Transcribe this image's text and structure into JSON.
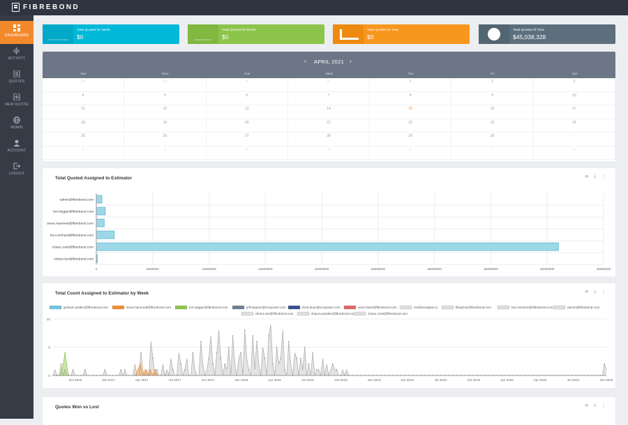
{
  "brand": "FIBREBOND",
  "nav": [
    {
      "label": "DASHBOARD",
      "icon": "dashboard-icon"
    },
    {
      "label": "ACTIVITY",
      "icon": "activity-icon"
    },
    {
      "label": "QUOTES",
      "icon": "quotes-icon"
    },
    {
      "label": "NEW QUOTE",
      "icon": "new-quote-icon"
    },
    {
      "label": "ADMIN",
      "icon": "globe-icon"
    },
    {
      "label": "ACCOUNT",
      "icon": "user-icon"
    },
    {
      "label": "LOGOUT",
      "icon": "logout-icon"
    }
  ],
  "stats": [
    {
      "label": "Total Quoted for Week",
      "value": "$0",
      "color": "#00b8d8",
      "icon": "chart-icon"
    },
    {
      "label": "Total Quoted for Month",
      "value": "$0",
      "color": "#8dc44b",
      "icon": "chart-icon"
    },
    {
      "label": "Total Quoted for Year",
      "value": "$0",
      "color": "#f7971e",
      "icon": "chart-icon"
    },
    {
      "label": "Total Quoted All Time",
      "value": "$45,038,328",
      "color": "#5b6f7c",
      "icon": "pie-icon"
    }
  ],
  "calendar": {
    "month": "APRIL 2021",
    "weekdays": [
      "Sun",
      "Mon",
      "Tue",
      "Wed",
      "Thu",
      "Fri",
      "Sat"
    ],
    "weeks": [
      [
        "28",
        "29",
        "30",
        "31",
        "1",
        "2",
        "3"
      ],
      [
        "4",
        "5",
        "6",
        "7",
        "8",
        "9",
        "10"
      ],
      [
        "11",
        "12",
        "13",
        "14",
        "15",
        "16",
        "17"
      ],
      [
        "18",
        "19",
        "20",
        "21",
        "22",
        "23",
        "24"
      ],
      [
        "25",
        "26",
        "27",
        "28",
        "29",
        "30",
        "1"
      ],
      [
        "2",
        "3",
        "4",
        "5",
        "6",
        "7",
        "8"
      ]
    ],
    "today": "15"
  },
  "panels": {
    "est_title": "Total Quoted Assigned to Estimator",
    "wk_title": "Total Count Assigned to Estimator by Week",
    "wl_title": "Quotes Won vs Lost"
  },
  "chart_data": [
    {
      "type": "bar",
      "orientation": "horizontal",
      "title": "Total Quoted Assigned to Estimator",
      "categories": [
        "admin@fibrebond.com",
        "tom.bigger@fibrebond.com",
        "steve.hammett@fibrebond.com",
        "ben.reinhard@fibrebond.com",
        "chase.cook@fibrebond.com",
        "clinton.lee@fibrebond.com"
      ],
      "values": [
        500000,
        800000,
        700000,
        1600000,
        41000000,
        100000
      ],
      "xlim": [
        0,
        45000000
      ],
      "xticks": [
        "0",
        "5000000",
        "10000000",
        "15000000",
        "20000000",
        "25000000",
        "30000000",
        "35000000",
        "40000000",
        "45000000"
      ],
      "color": "#9ed8e8",
      "grid": true
    },
    {
      "type": "area",
      "title": "Total Count Assigned to Estimator by Week",
      "ylim": [
        0,
        10
      ],
      "yticks": [
        "0",
        "5",
        "10"
      ],
      "xticks": [
        "Oct 2016",
        "Jan 2017",
        "Apr 2017",
        "Jul 2017",
        "Oct 2017",
        "Jan 2018",
        "Apr 2018",
        "Jul 2018",
        "Oct 2018",
        "Jan 2019",
        "Apr 2019",
        "Jul 2019",
        "Oct 2019",
        "Jan 2020",
        "Apr 2020",
        "Jul 2020",
        "Oct 2020"
      ],
      "legend": [
        {
          "name": "graham.walker@fibrebond.com",
          "color": "#6cc6e0"
        },
        {
          "name": "steve.hammett@fibrebond.com",
          "color": "#f28a2b"
        },
        {
          "name": "tom.bigger@fibrebond.com",
          "color": "#8dc44b"
        },
        {
          "name": "jeff.begnen@scopower.com",
          "color": "#6e7c90"
        },
        {
          "name": "brett.dean@scopower.com",
          "color": "#334e8a"
        },
        {
          "name": "sean.black@fibrebond.com",
          "color": "#e06464"
        },
        {
          "name": "nick@unabyte.io",
          "color": "#dddddd"
        },
        {
          "name": "fibadmin@fibrebond.com",
          "color": "#dddddd"
        },
        {
          "name": "ben.reinhard@fibrebond.com",
          "color": "#dddddd"
        },
        {
          "name": "admin@fibrebond.com",
          "color": "#dddddd"
        },
        {
          "name": "clinton.lee@fibrebond.com",
          "color": "#dddddd"
        },
        {
          "name": "sharon.pulstler@fibrebond.com",
          "color": "#dddddd"
        },
        {
          "name": "chase.cook@fibrebond.com",
          "color": "#dddddd"
        }
      ],
      "series": [
        {
          "name": "tom.bigger@fibrebond.com",
          "color": "#8dc44b",
          "values": [
            0,
            0,
            0,
            1,
            2,
            4,
            2,
            0
          ]
        },
        {
          "name": "steve.hammett@fibrebond.com",
          "color": "#f28a2b",
          "values": [
            0,
            1,
            2,
            0,
            1,
            0,
            1,
            0,
            1,
            0
          ]
        },
        {
          "name": "chase.cook@fibrebond.com",
          "color": "#cccccc",
          "values": [
            0,
            1,
            0,
            0,
            2,
            0,
            1,
            0,
            0,
            0,
            1,
            0,
            0,
            0,
            0,
            0,
            1,
            0,
            0,
            0,
            0,
            0,
            0,
            0,
            0,
            0,
            1,
            0,
            0,
            0,
            0,
            0,
            0,
            0,
            1,
            0,
            1,
            0,
            0,
            0,
            0,
            2,
            0,
            0,
            4,
            1,
            0,
            1,
            0,
            6,
            3,
            0,
            1,
            0,
            0,
            2,
            0,
            1,
            0,
            3,
            1,
            0,
            0,
            4,
            2,
            0,
            1,
            3,
            0,
            0,
            4,
            1,
            0,
            0,
            6,
            2,
            0,
            1,
            3,
            7,
            2,
            0,
            4,
            8,
            3,
            0,
            2,
            1,
            5,
            0,
            7,
            2,
            0,
            3,
            4,
            0,
            8,
            3,
            1,
            0,
            7,
            1,
            6,
            2,
            0,
            5,
            3,
            0,
            7,
            9,
            2,
            0,
            5,
            2,
            3,
            8,
            1,
            0,
            6,
            2,
            0,
            4,
            3,
            0,
            3,
            1,
            5,
            0,
            2,
            0,
            4,
            0,
            1,
            1,
            0,
            3,
            0,
            2,
            0,
            1,
            2,
            1,
            1,
            0,
            0,
            1,
            0,
            1,
            0,
            0,
            0,
            0,
            0,
            0,
            0,
            0,
            0,
            0,
            0,
            0,
            0,
            0,
            0,
            0,
            0,
            0,
            0,
            0,
            0,
            0,
            0,
            0,
            0,
            0,
            0,
            0,
            0,
            0,
            0,
            0,
            0,
            0,
            0,
            0,
            0,
            0,
            0,
            0,
            0,
            0,
            0,
            0,
            0,
            0,
            0,
            0,
            0,
            0,
            0,
            0,
            0,
            0,
            0,
            0,
            0,
            0,
            0,
            0,
            0,
            0,
            0,
            0,
            0,
            0,
            0,
            0,
            0,
            0,
            0,
            0,
            0,
            0,
            0,
            0,
            0,
            0,
            0,
            0,
            0,
            0,
            0,
            0,
            0,
            0,
            0,
            0,
            0,
            0,
            0,
            0,
            0,
            0,
            0,
            0,
            0,
            0,
            0,
            0,
            0,
            0,
            0,
            0,
            0,
            0,
            0,
            0,
            0,
            0,
            0,
            0,
            0,
            0,
            0,
            0,
            0,
            0,
            0,
            0,
            0,
            0,
            0,
            0,
            0,
            0,
            0,
            0,
            2,
            1
          ]
        }
      ]
    }
  ]
}
